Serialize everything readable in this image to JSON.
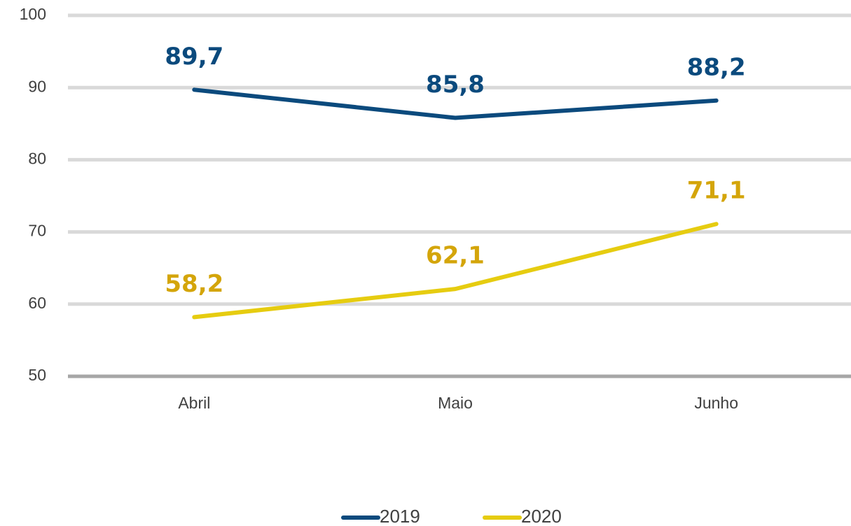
{
  "chart_data": {
    "type": "line",
    "categories": [
      "Abril",
      "Maio",
      "Junho"
    ],
    "series": [
      {
        "name": "2019",
        "color": "#0b4a7d",
        "label_color": "#0b4a7d",
        "values": [
          89.7,
          85.8,
          88.2
        ],
        "value_labels": [
          "89,7",
          "85,8",
          "88,2"
        ]
      },
      {
        "name": "2020",
        "color": "#e6cc10",
        "label_color": "#d4a50a",
        "values": [
          58.2,
          62.1,
          71.1
        ],
        "value_labels": [
          "58,2",
          "62,1",
          "71,1"
        ]
      }
    ],
    "ylim": [
      50,
      100
    ],
    "yticks": [
      50,
      60,
      70,
      80,
      90,
      100
    ],
    "grid": true,
    "legend": "bottom"
  }
}
